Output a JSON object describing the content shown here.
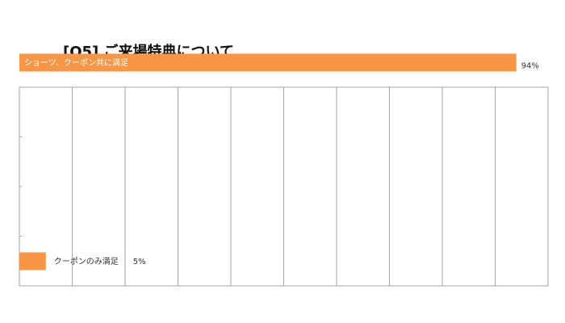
{
  "chart_data": {
    "type": "bar",
    "orientation": "horizontal",
    "title": "[Q5] ご来場特典について",
    "categories": [
      "ショーツ、クーポン共に満足",
      "クーポンのみ満足"
    ],
    "values": [
      94,
      5
    ],
    "value_labels": [
      "94%",
      "5%"
    ],
    "unit": "%",
    "xlim": [
      0,
      100
    ],
    "grid": true,
    "bar_color": "#f79646",
    "grid_color": "#a6a6a6"
  }
}
